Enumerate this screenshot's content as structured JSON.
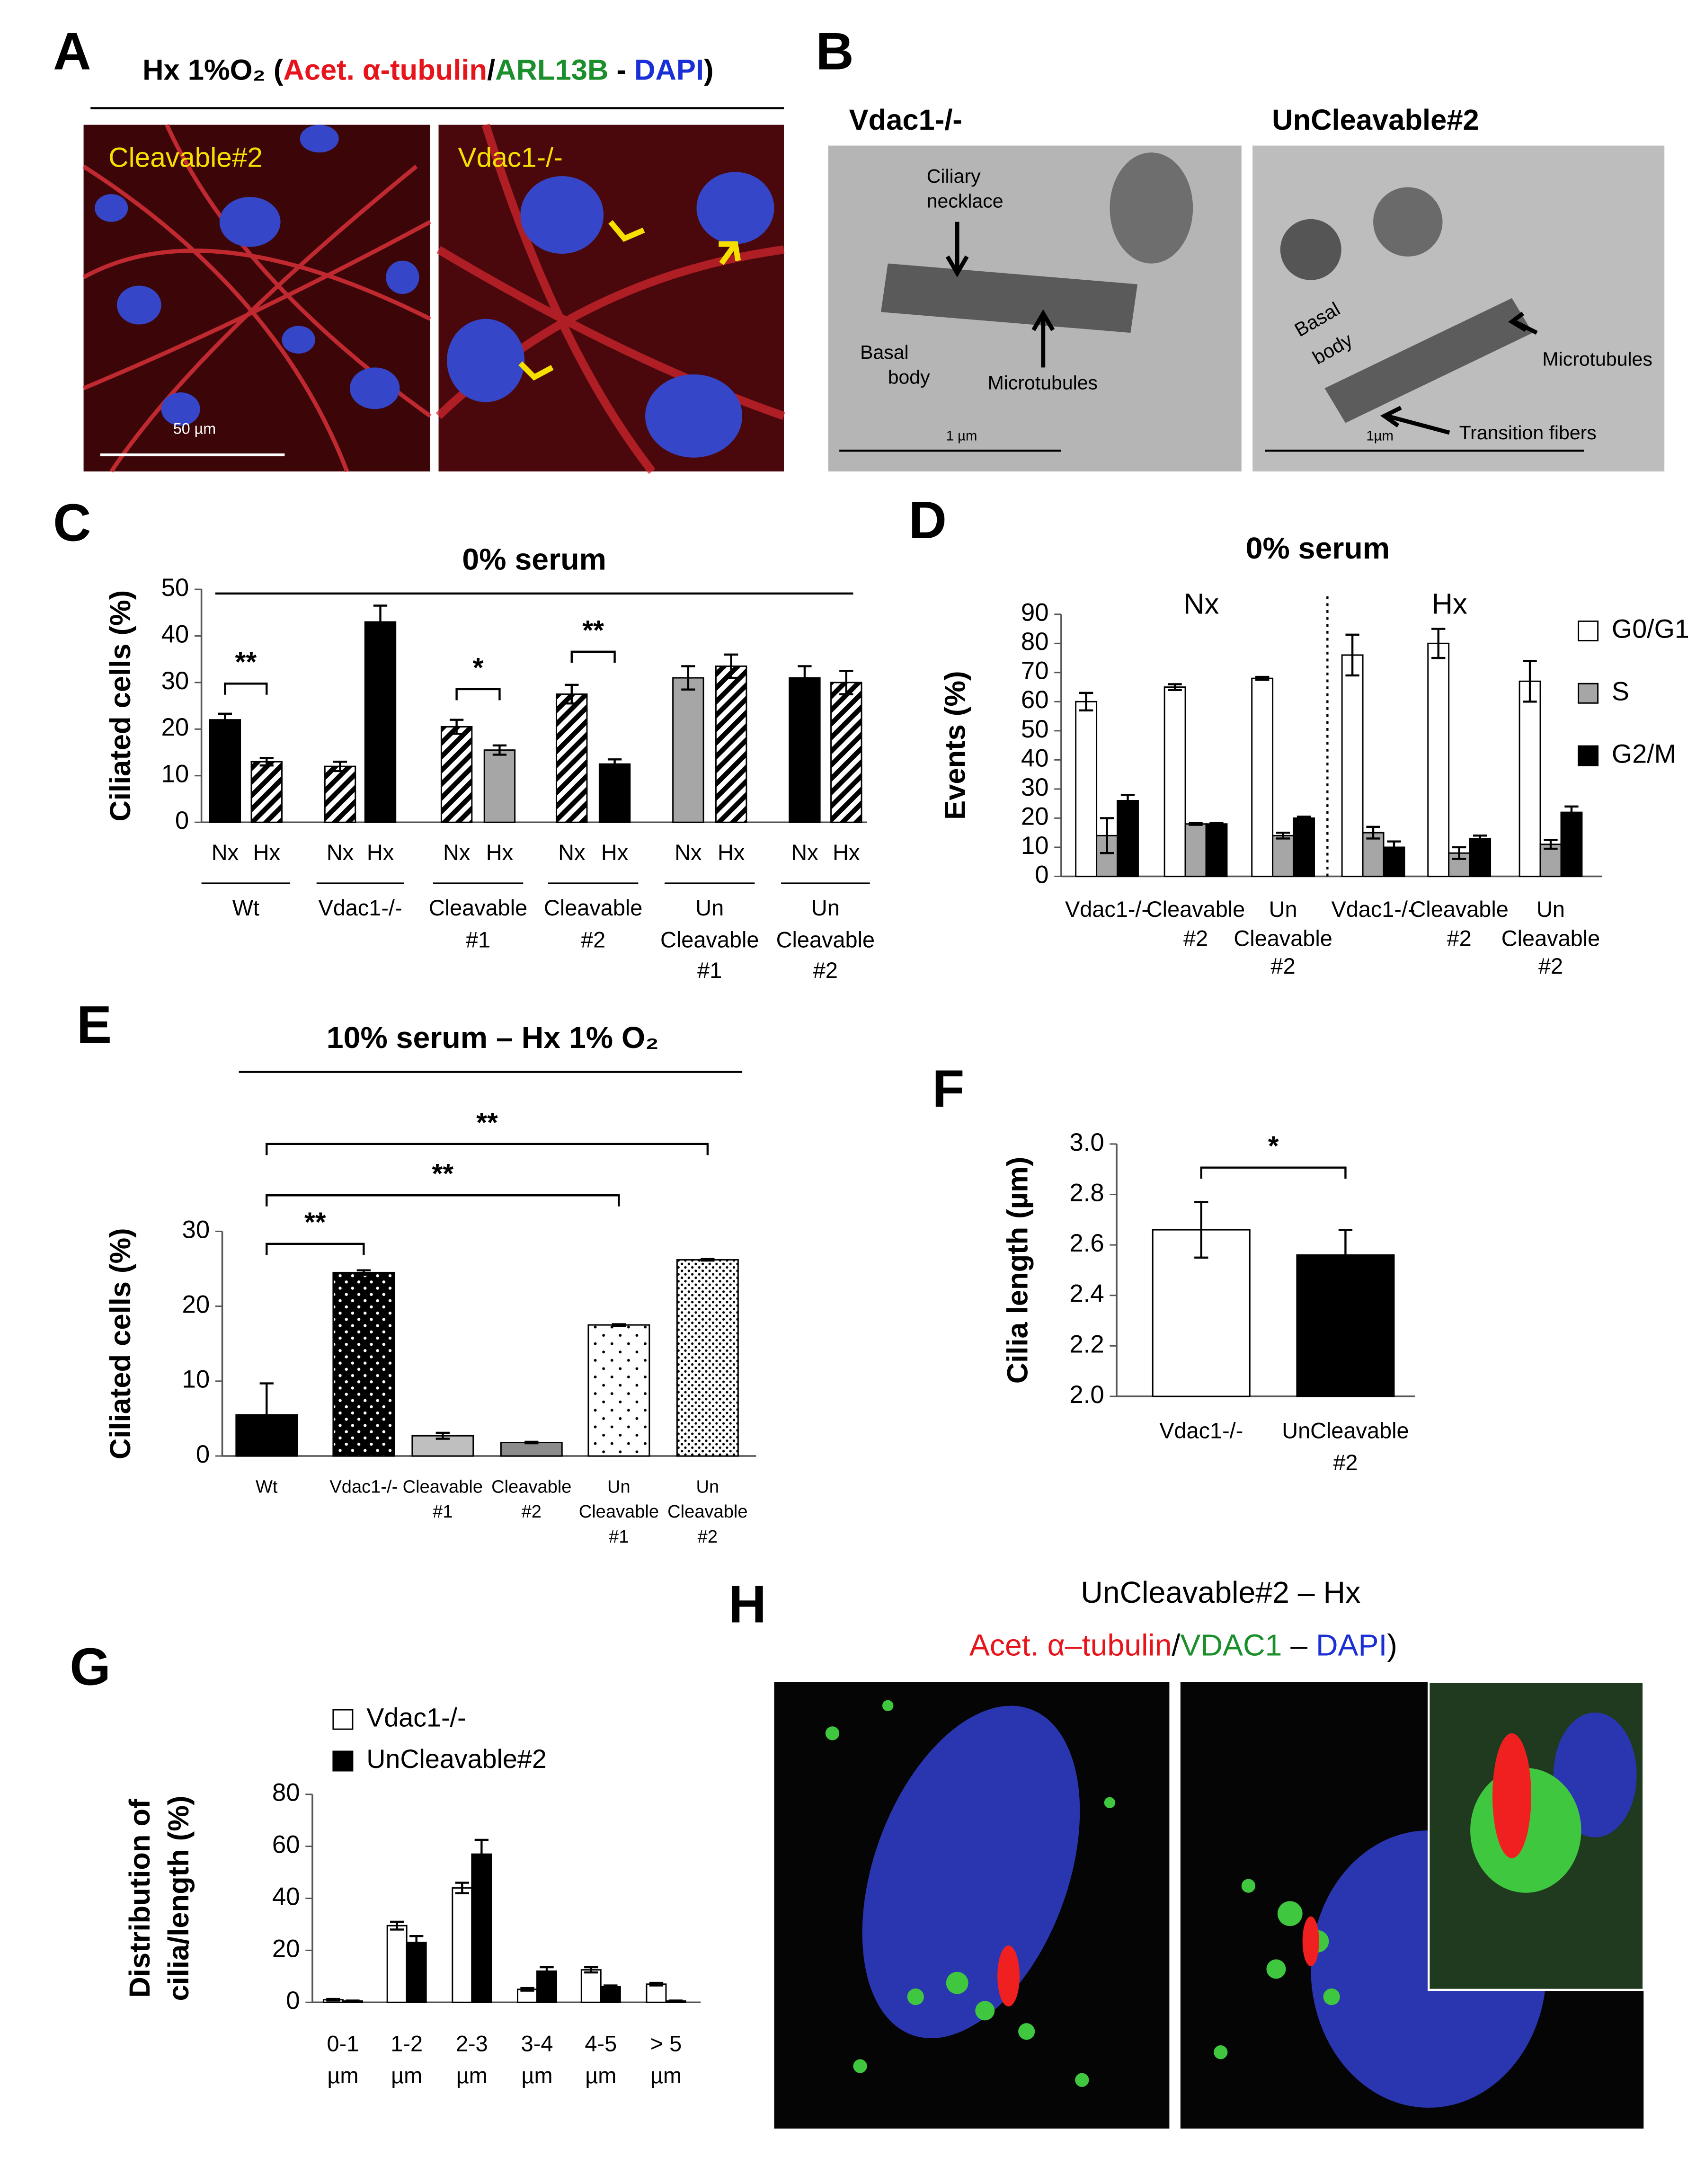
{
  "panel_a": {
    "letter": "A",
    "title_parts": [
      "Hx 1%O₂ ",
      "(",
      "Acet. α-tubulin",
      "/",
      "ARL13B",
      " - ",
      "DAPI",
      ")"
    ],
    "image_labels": [
      "Cleavable#2",
      "Vdac1-/-"
    ],
    "scale_bar": "50 µm"
  },
  "panel_b": {
    "letter": "B",
    "image_titles": [
      "Vdac1-/-",
      "UnCleavable#2"
    ],
    "left_labels": [
      "Ciliary",
      "necklace",
      "Basal",
      "body",
      "Microtubules",
      "1 µm"
    ],
    "right_labels": [
      "Basal",
      "body",
      "Microtubules",
      "Transition fibers",
      "1µm"
    ]
  },
  "panel_h": {
    "letter": "H",
    "title": "UnCleavable#2 – Hx",
    "subtitle_parts": [
      "Acet. α–tubulin",
      "/",
      "VDAC1",
      " – ",
      "DAPI",
      ")"
    ]
  },
  "chart_data": [
    {
      "panel": "C",
      "type": "bar",
      "title": "0% serum",
      "y_label": "Ciliated cells (%)",
      "categories": [
        "Nx",
        "Hx",
        "Nx",
        "Hx",
        "Nx",
        "Hx",
        "Nx",
        "Hx",
        "Nx",
        "Hx",
        "Nx",
        "Hx"
      ],
      "groups": [
        [
          "Wt"
        ],
        [
          "Vdac1-/-"
        ],
        [
          "Cleavable",
          "#1"
        ],
        [
          "Cleavable",
          "#2"
        ],
        [
          "Un",
          "Cleavable",
          "#1"
        ],
        [
          "Un",
          "Cleavable",
          "#2"
        ]
      ],
      "values": [
        22,
        13,
        12,
        43,
        20.5,
        15.5,
        27.5,
        12.5,
        31,
        33.5,
        31,
        30
      ],
      "errors": [
        1.3,
        0.8,
        1,
        3.5,
        1.5,
        1,
        2,
        1,
        2.5,
        2.5,
        2.5,
        2.5
      ],
      "fills": [
        "black",
        "hatch",
        "hatch",
        "black",
        "hatch",
        "#a6a6a6",
        "hatch",
        "black",
        "#a6a6a6",
        "hatch",
        "black",
        "hatch"
      ],
      "ylim": [
        0,
        50
      ],
      "yticks": [
        0,
        10,
        20,
        30,
        40,
        50
      ],
      "annotations": [
        "**",
        "*",
        "**"
      ]
    },
    {
      "panel": "D",
      "type": "grouped_bar",
      "title": "0% serum",
      "y_label": "Events (%)",
      "sections": [
        "Nx",
        "Hx"
      ],
      "categories": [
        [
          "Vdac1-/-"
        ],
        [
          "Cleavable",
          "#2"
        ],
        [
          "Un",
          "Cleavable",
          "#2"
        ],
        [
          "Vdac1-/-"
        ],
        [
          "Cleavable",
          "#2"
        ],
        [
          "Un",
          "Cleavable",
          "#2"
        ]
      ],
      "series": [
        {
          "name": "G0/G1",
          "color": "#ffffff",
          "values": [
            60,
            65,
            68,
            76,
            80,
            67
          ],
          "errors": [
            3,
            1,
            0.5,
            7,
            5,
            7
          ]
        },
        {
          "name": "S",
          "color": "#a6a6a6",
          "values": [
            14,
            18,
            14,
            15,
            8,
            11
          ],
          "errors": [
            6,
            0.3,
            1,
            2,
            2,
            1.5
          ]
        },
        {
          "name": "G2/M",
          "color": "#000000",
          "values": [
            26,
            18,
            20,
            10,
            13,
            22
          ],
          "errors": [
            2,
            0.3,
            0.5,
            2,
            1,
            2
          ]
        }
      ],
      "ylim": [
        0,
        90
      ],
      "yticks": [
        0,
        10,
        20,
        30,
        40,
        50,
        60,
        70,
        80,
        90
      ],
      "legend": "right"
    },
    {
      "panel": "E",
      "type": "bar",
      "title": "10% serum – Hx 1% O₂",
      "y_label": "Ciliated cells (%)",
      "categories": [
        [
          "Wt"
        ],
        [
          "Vdac1-/-"
        ],
        [
          "Cleavable",
          "#1"
        ],
        [
          "Cleavable",
          "#2"
        ],
        [
          "Un",
          "Cleavable",
          "#1"
        ],
        [
          "Un",
          "Cleavable",
          "#2"
        ]
      ],
      "values": [
        5.5,
        24.5,
        2.7,
        1.8,
        17.5,
        26.2
      ],
      "errors": [
        4.2,
        0.3,
        0.4,
        0.1,
        0.1,
        0.1
      ],
      "fills": [
        "black",
        "dots-black",
        "#bfbfbf",
        "#8c8c8c",
        "dots-sparse",
        "dots-dense"
      ],
      "ylim": [
        0,
        30
      ],
      "yticks": [
        0,
        10,
        20,
        30
      ],
      "annotations": [
        "**",
        "**",
        "**"
      ]
    },
    {
      "panel": "F",
      "type": "bar",
      "y_label": "Cilia length (µm)",
      "categories": [
        [
          "Vdac1-/-"
        ],
        [
          "UnCleavable",
          "#2"
        ]
      ],
      "values": [
        2.66,
        2.56
      ],
      "errors": [
        0.11,
        0.1
      ],
      "fills": [
        "white",
        "black"
      ],
      "ylim": [
        2.0,
        3.0
      ],
      "yticks": [
        {
          "value": 2,
          "label": "2.0"
        },
        {
          "value": 2.2,
          "label": "2.2"
        },
        {
          "value": 2.4,
          "label": "2.4"
        },
        {
          "value": 2.6,
          "label": "2.6"
        },
        {
          "value": 2.8,
          "label": "2.8"
        },
        {
          "value": 3,
          "label": "3.0"
        }
      ],
      "annotations": [
        "*"
      ]
    },
    {
      "panel": "G",
      "type": "grouped_bar",
      "y_label": [
        "Distribution of",
        "cilia/length (%)"
      ],
      "categories": [
        [
          "0-1",
          "µm"
        ],
        [
          "1-2",
          "µm"
        ],
        [
          "2-3",
          "µm"
        ],
        [
          "3-4",
          "µm"
        ],
        [
          "4-5",
          "µm"
        ],
        [
          "> 5",
          "µm"
        ]
      ],
      "series": [
        {
          "name": "Vdac1-/-",
          "color": "#ffffff",
          "values": [
            1,
            29.5,
            44,
            5,
            12.5,
            7
          ],
          "errors": [
            0.3,
            1.5,
            2,
            0.5,
            1,
            0.5
          ]
        },
        {
          "name": "UnCleavable#2",
          "color": "#000000",
          "values": [
            0.5,
            23,
            57,
            12,
            6,
            0.5
          ],
          "errors": [
            0.2,
            2.5,
            5.5,
            1.5,
            0.5,
            0.2
          ]
        }
      ],
      "ylim": [
        0,
        80
      ],
      "yticks": [
        0,
        20,
        40,
        60,
        80
      ],
      "legend": "top-left"
    }
  ]
}
